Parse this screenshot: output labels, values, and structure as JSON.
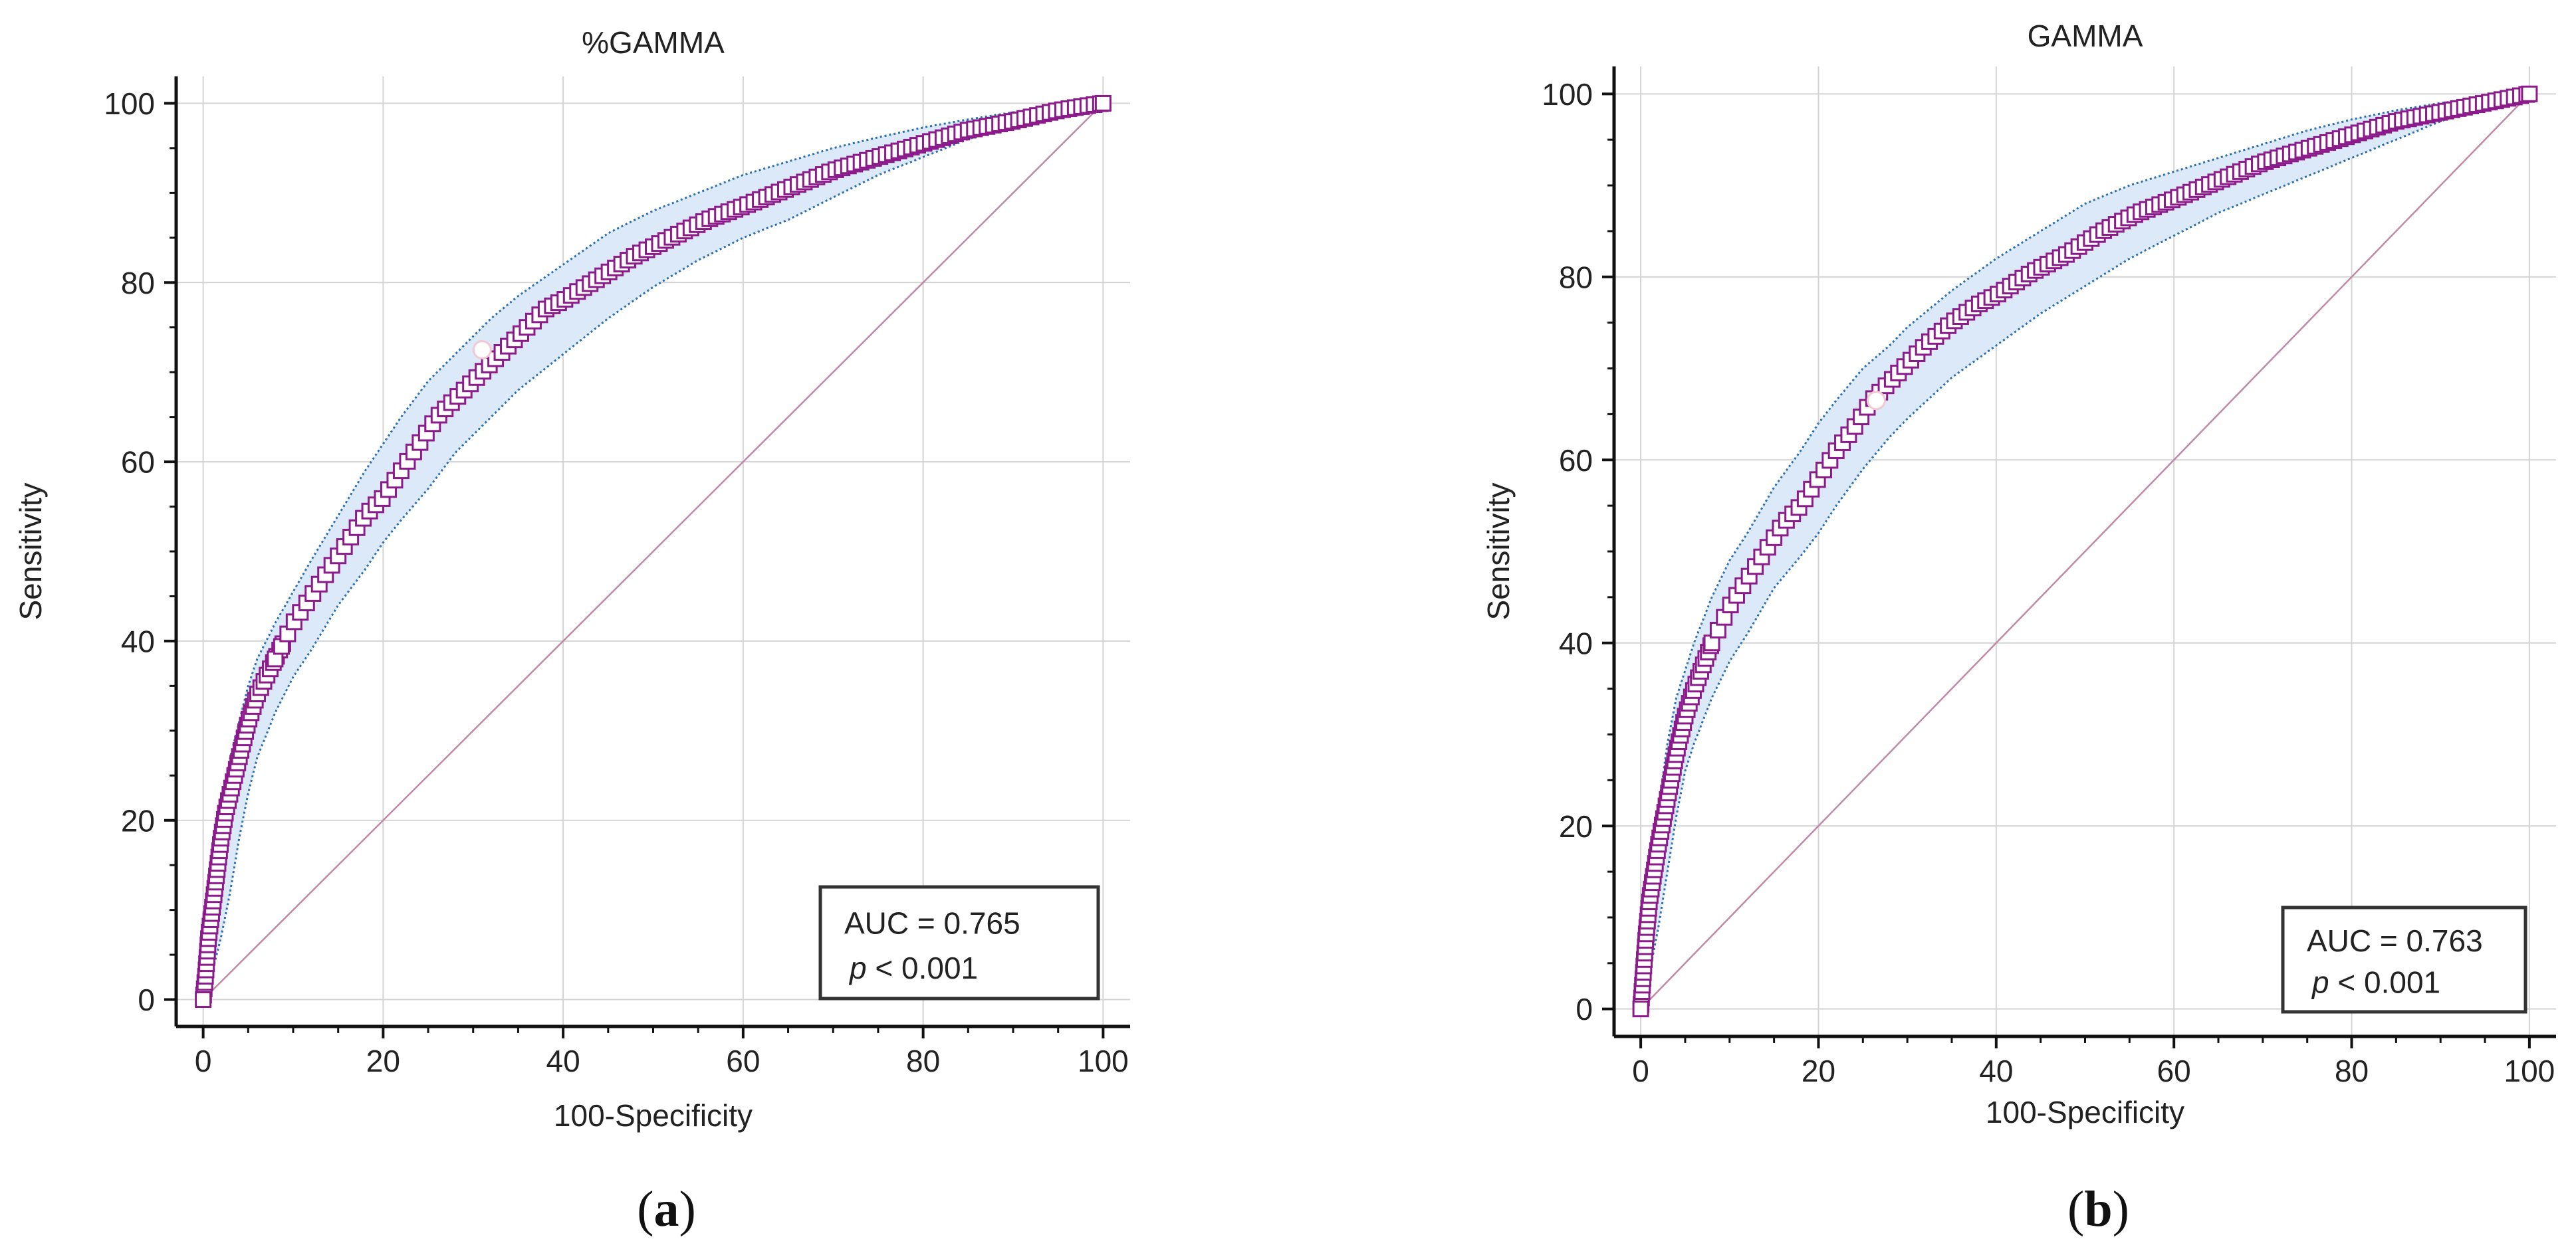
{
  "chart_data": [
    {
      "type": "line",
      "panel_label": "a",
      "title": "%GAMMA",
      "xlabel": "100-Specificity",
      "ylabel": "Sensitivity",
      "xlim": [
        -3,
        103
      ],
      "ylim": [
        -3,
        103
      ],
      "xticks": [
        0,
        20,
        40,
        60,
        80,
        100
      ],
      "yticks": [
        0,
        20,
        40,
        60,
        80,
        100
      ],
      "x_tick_labels": [
        "0",
        "20",
        "40",
        "60",
        "80",
        "100"
      ],
      "y_tick_labels": [
        "0",
        "20",
        "40",
        "60",
        "80",
        "100"
      ],
      "grid": true,
      "annotation": {
        "auc_text": "AUC = 0.765",
        "p_letter": "p",
        "p_rest": " < 0.001",
        "placement": "bottom-right"
      },
      "series": [
        {
          "role": "roc-curve",
          "x": [
            0,
            0.3,
            0.6,
            1,
            1.5,
            2,
            2.5,
            3,
            4,
            5,
            6,
            7,
            8,
            10,
            12,
            14,
            16,
            18,
            20,
            22,
            24,
            26,
            28,
            30,
            32,
            35,
            38,
            40,
            44,
            48,
            52,
            56,
            60,
            65,
            70,
            75,
            80,
            85,
            90,
            95,
            98,
            100
          ],
          "y": [
            0,
            3,
            7,
            10,
            14,
            18,
            21,
            23,
            27,
            31,
            34,
            36,
            38,
            42,
            45,
            48,
            51,
            54,
            56,
            59,
            62,
            65,
            67,
            69,
            71,
            74,
            77,
            78,
            80.5,
            83,
            85,
            87,
            88.5,
            90.5,
            92.5,
            94,
            95.5,
            97,
            98,
            99.2,
            99.7,
            100
          ]
        },
        {
          "role": "ci-upper",
          "x": [
            0,
            0.5,
            1,
            2,
            3,
            4,
            5,
            6,
            8,
            10,
            12,
            15,
            18,
            20,
            22,
            25,
            28,
            30,
            32,
            35,
            40,
            45,
            50,
            55,
            60,
            65,
            70,
            75,
            80,
            85,
            90,
            95,
            100
          ],
          "y": [
            0,
            6,
            12,
            21,
            27,
            31,
            35,
            38,
            42,
            45.5,
            49,
            54,
            59,
            62,
            65,
            69,
            72,
            74,
            76,
            78.5,
            82,
            85.5,
            88,
            90,
            92,
            93.5,
            95,
            96.2,
            97.3,
            98.2,
            99,
            99.6,
            100
          ]
        },
        {
          "role": "ci-lower",
          "x": [
            0,
            1,
            2,
            3,
            4,
            5,
            6,
            8,
            10,
            12,
            15,
            18,
            20,
            22,
            25,
            28,
            30,
            32,
            35,
            40,
            45,
            50,
            55,
            60,
            65,
            70,
            75,
            80,
            85,
            90,
            95,
            98,
            100
          ],
          "y": [
            0,
            3,
            7,
            12,
            18,
            23,
            27,
            32,
            36,
            39,
            44,
            48,
            51,
            53.5,
            57,
            61,
            63,
            65,
            68,
            72,
            76,
            79.5,
            82.5,
            85,
            87,
            89.5,
            92,
            94,
            96,
            97.5,
            98.8,
            99.5,
            100
          ]
        },
        {
          "role": "reference-diagonal",
          "x": [
            0,
            100
          ],
          "y": [
            0,
            100
          ]
        }
      ],
      "marker_point": {
        "x": 31,
        "y": 72.5
      }
    },
    {
      "type": "line",
      "panel_label": "b",
      "title": "GAMMA",
      "xlabel": "100-Specificity",
      "ylabel": "Sensitivity",
      "xlim": [
        -3,
        103
      ],
      "ylim": [
        -3,
        103
      ],
      "xticks": [
        0,
        20,
        40,
        60,
        80,
        100
      ],
      "yticks": [
        0,
        20,
        40,
        60,
        80,
        100
      ],
      "x_tick_labels": [
        "0",
        "20",
        "40",
        "60",
        "80",
        "100"
      ],
      "y_tick_labels": [
        "0",
        "20",
        "40",
        "60",
        "80",
        "100"
      ],
      "grid": true,
      "annotation": {
        "auc_text": "AUC = 0.763",
        "p_letter": "p",
        "p_rest": " < 0.001",
        "placement": "bottom-right"
      },
      "series": [
        {
          "role": "roc-curve",
          "x": [
            0,
            0.3,
            0.6,
            1,
            1.5,
            2,
            3,
            4,
            5,
            6,
            8,
            10,
            12,
            14,
            16,
            18,
            20,
            22,
            24,
            26,
            28,
            30,
            32,
            35,
            38,
            40,
            44,
            48,
            52,
            56,
            60,
            65,
            70,
            75,
            80,
            85,
            90,
            95,
            100
          ],
          "y": [
            0,
            4,
            8,
            12,
            15,
            18,
            23,
            28,
            32,
            35,
            40,
            44,
            47,
            50,
            53,
            55,
            58,
            61,
            63.5,
            66.5,
            68.5,
            70.5,
            72.5,
            75,
            77,
            78,
            80.5,
            82.5,
            85,
            87,
            88.5,
            90.5,
            92.5,
            94,
            95.5,
            97,
            98,
            99,
            100
          ]
        },
        {
          "role": "ci-upper",
          "x": [
            0,
            0.5,
            1,
            2,
            3,
            4,
            5,
            6,
            8,
            10,
            12,
            15,
            18,
            20,
            22,
            25,
            28,
            30,
            35,
            40,
            45,
            50,
            55,
            60,
            65,
            70,
            75,
            80,
            85,
            90,
            95,
            100
          ],
          "y": [
            0,
            7,
            13,
            22,
            29,
            34,
            37,
            40,
            45,
            49,
            52,
            57,
            61,
            64,
            66.5,
            70,
            72.5,
            74.5,
            78.5,
            82,
            85,
            88,
            90,
            91.5,
            93,
            94.5,
            96,
            97.2,
            98.2,
            99,
            99.6,
            100
          ]
        },
        {
          "role": "ci-lower",
          "x": [
            0,
            1,
            2,
            3,
            4,
            5,
            6,
            8,
            10,
            12,
            15,
            18,
            20,
            22,
            25,
            28,
            30,
            35,
            40,
            45,
            50,
            55,
            60,
            65,
            70,
            75,
            80,
            85,
            90,
            95,
            98,
            100
          ],
          "y": [
            0,
            4,
            9,
            15,
            21,
            26,
            29,
            34,
            38,
            41,
            46,
            49.5,
            52,
            55,
            59,
            62.5,
            64.5,
            69,
            72.5,
            76,
            79,
            82,
            84.5,
            87,
            89,
            91,
            93,
            95,
            97,
            98.7,
            99.5,
            100
          ]
        },
        {
          "role": "reference-diagonal",
          "x": [
            0,
            100
          ],
          "y": [
            0,
            100
          ]
        }
      ],
      "marker_point": {
        "x": 26.5,
        "y": 66.5
      }
    }
  ],
  "colors": {
    "curve": "#8b1a8b",
    "square_fill": "#ffffff",
    "ci_band": "#dbe9f8",
    "ci_border": "#2a6fb0",
    "diagonal": "#c08aa6",
    "grid": "#d4d4d4",
    "axis": "#111111",
    "text": "#222222"
  }
}
